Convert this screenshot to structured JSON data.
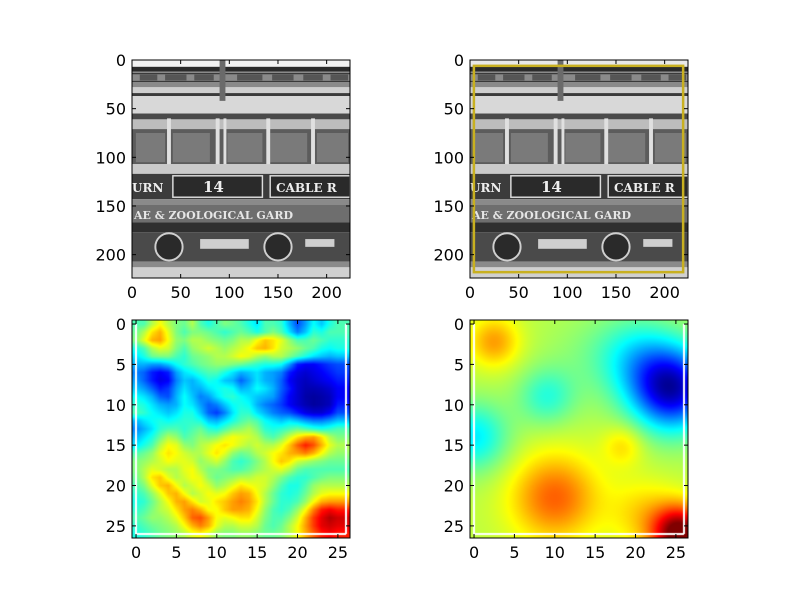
{
  "chart_data": [
    {
      "type": "image",
      "panel": "top-left",
      "content": "grayscale photo of cable car No. 14",
      "image_text": [
        "URN",
        "14",
        "CABLE R",
        "AE & ZOOLOGICAL GARD"
      ],
      "xlim": [
        0,
        224
      ],
      "ylim": [
        224,
        0
      ],
      "xticks": [
        0,
        50,
        100,
        150,
        200
      ],
      "yticks": [
        0,
        50,
        100,
        150,
        200
      ],
      "grid": false
    },
    {
      "type": "image",
      "panel": "top-right",
      "content": "same grayscale photo with bounding box",
      "image_text": [
        "URN",
        "14",
        "CABLE R",
        "AE & ZOOLOGICAL GARD"
      ],
      "xlim": [
        0,
        224
      ],
      "ylim": [
        224,
        0
      ],
      "xticks": [
        0,
        50,
        100,
        150,
        200
      ],
      "yticks": [
        0,
        50,
        100,
        150,
        200
      ],
      "box": {
        "x0": 4,
        "y0": 6,
        "x1": 219,
        "y1": 218,
        "color": "#c8b020"
      },
      "grid": false
    },
    {
      "type": "heatmap",
      "panel": "bottom-left",
      "colormap": "jet",
      "xlim": [
        0,
        26
      ],
      "ylim": [
        26,
        0
      ],
      "xticks": [
        0,
        5,
        10,
        15,
        20,
        25
      ],
      "yticks": [
        0,
        5,
        10,
        15,
        20,
        25
      ],
      "grid": false,
      "values_0_to_1": [
        [
          0.45,
          0.45,
          0.55,
          0.62,
          0.55,
          0.5,
          0.48,
          0.55,
          0.45,
          0.4,
          0.45,
          0.5,
          0.48,
          0.45,
          0.4,
          0.35,
          0.45,
          0.45,
          0.42,
          0.3,
          0.2,
          0.28,
          0.38,
          0.32,
          0.4,
          0.45
        ],
        [
          0.48,
          0.55,
          0.65,
          0.7,
          0.6,
          0.5,
          0.45,
          0.5,
          0.5,
          0.48,
          0.45,
          0.42,
          0.45,
          0.48,
          0.45,
          0.4,
          0.45,
          0.5,
          0.45,
          0.35,
          0.25,
          0.32,
          0.42,
          0.4,
          0.45,
          0.45
        ],
        [
          0.5,
          0.6,
          0.7,
          0.72,
          0.62,
          0.52,
          0.5,
          0.55,
          0.55,
          0.52,
          0.5,
          0.48,
          0.5,
          0.55,
          0.55,
          0.62,
          0.68,
          0.65,
          0.6,
          0.52,
          0.45,
          0.45,
          0.48,
          0.45,
          0.42,
          0.42
        ],
        [
          0.4,
          0.45,
          0.55,
          0.6,
          0.58,
          0.5,
          0.45,
          0.52,
          0.55,
          0.58,
          0.55,
          0.52,
          0.55,
          0.58,
          0.62,
          0.68,
          0.7,
          0.65,
          0.58,
          0.55,
          0.52,
          0.48,
          0.45,
          0.4,
          0.38,
          0.4
        ],
        [
          0.35,
          0.4,
          0.48,
          0.5,
          0.5,
          0.45,
          0.42,
          0.48,
          0.5,
          0.52,
          0.55,
          0.55,
          0.58,
          0.62,
          0.6,
          0.55,
          0.52,
          0.55,
          0.55,
          0.5,
          0.45,
          0.4,
          0.35,
          0.32,
          0.3,
          0.32
        ],
        [
          0.3,
          0.3,
          0.28,
          0.28,
          0.32,
          0.38,
          0.42,
          0.45,
          0.48,
          0.5,
          0.52,
          0.52,
          0.5,
          0.48,
          0.45,
          0.42,
          0.4,
          0.4,
          0.38,
          0.28,
          0.15,
          0.12,
          0.12,
          0.15,
          0.18,
          0.2
        ],
        [
          0.25,
          0.22,
          0.15,
          0.12,
          0.15,
          0.28,
          0.35,
          0.38,
          0.42,
          0.45,
          0.45,
          0.4,
          0.35,
          0.3,
          0.32,
          0.35,
          0.3,
          0.28,
          0.25,
          0.15,
          0.1,
          0.08,
          0.1,
          0.12,
          0.15,
          0.18
        ],
        [
          0.28,
          0.22,
          0.15,
          0.1,
          0.12,
          0.25,
          0.32,
          0.3,
          0.35,
          0.4,
          0.38,
          0.32,
          0.3,
          0.22,
          0.28,
          0.35,
          0.3,
          0.28,
          0.22,
          0.12,
          0.08,
          0.06,
          0.08,
          0.1,
          0.12,
          0.15
        ],
        [
          0.32,
          0.28,
          0.22,
          0.15,
          0.18,
          0.28,
          0.35,
          0.3,
          0.3,
          0.35,
          0.38,
          0.4,
          0.38,
          0.3,
          0.32,
          0.38,
          0.35,
          0.3,
          0.22,
          0.15,
          0.08,
          0.05,
          0.05,
          0.06,
          0.08,
          0.12
        ],
        [
          0.38,
          0.35,
          0.3,
          0.22,
          0.2,
          0.3,
          0.38,
          0.32,
          0.25,
          0.28,
          0.35,
          0.4,
          0.42,
          0.38,
          0.35,
          0.32,
          0.3,
          0.28,
          0.2,
          0.12,
          0.08,
          0.04,
          0.03,
          0.04,
          0.06,
          0.12
        ],
        [
          0.42,
          0.4,
          0.35,
          0.3,
          0.28,
          0.3,
          0.38,
          0.35,
          0.28,
          0.22,
          0.25,
          0.32,
          0.38,
          0.4,
          0.38,
          0.3,
          0.25,
          0.22,
          0.18,
          0.12,
          0.08,
          0.05,
          0.03,
          0.04,
          0.06,
          0.15
        ],
        [
          0.45,
          0.42,
          0.38,
          0.35,
          0.32,
          0.35,
          0.4,
          0.4,
          0.32,
          0.22,
          0.18,
          0.25,
          0.35,
          0.42,
          0.42,
          0.35,
          0.3,
          0.25,
          0.22,
          0.2,
          0.15,
          0.1,
          0.08,
          0.08,
          0.12,
          0.2
        ],
        [
          0.3,
          0.35,
          0.38,
          0.4,
          0.38,
          0.4,
          0.42,
          0.42,
          0.4,
          0.32,
          0.3,
          0.35,
          0.4,
          0.45,
          0.48,
          0.45,
          0.38,
          0.35,
          0.32,
          0.35,
          0.32,
          0.28,
          0.25,
          0.25,
          0.28,
          0.32
        ],
        [
          0.25,
          0.3,
          0.35,
          0.42,
          0.45,
          0.45,
          0.42,
          0.45,
          0.48,
          0.42,
          0.4,
          0.45,
          0.5,
          0.52,
          0.55,
          0.5,
          0.42,
          0.4,
          0.42,
          0.45,
          0.48,
          0.45,
          0.42,
          0.4,
          0.42,
          0.45
        ],
        [
          0.3,
          0.35,
          0.4,
          0.48,
          0.55,
          0.52,
          0.45,
          0.48,
          0.52,
          0.5,
          0.52,
          0.58,
          0.62,
          0.6,
          0.58,
          0.55,
          0.48,
          0.45,
          0.5,
          0.58,
          0.65,
          0.7,
          0.72,
          0.65,
          0.55,
          0.5
        ],
        [
          0.35,
          0.4,
          0.45,
          0.55,
          0.62,
          0.6,
          0.52,
          0.5,
          0.55,
          0.58,
          0.62,
          0.65,
          0.62,
          0.58,
          0.55,
          0.58,
          0.55,
          0.55,
          0.6,
          0.68,
          0.78,
          0.85,
          0.8,
          0.7,
          0.6,
          0.55
        ],
        [
          0.45,
          0.48,
          0.52,
          0.6,
          0.65,
          0.62,
          0.58,
          0.55,
          0.55,
          0.6,
          0.65,
          0.6,
          0.52,
          0.48,
          0.5,
          0.55,
          0.58,
          0.62,
          0.65,
          0.7,
          0.72,
          0.75,
          0.7,
          0.62,
          0.55,
          0.52
        ],
        [
          0.5,
          0.52,
          0.55,
          0.58,
          0.62,
          0.6,
          0.6,
          0.58,
          0.52,
          0.55,
          0.58,
          0.52,
          0.45,
          0.42,
          0.45,
          0.5,
          0.55,
          0.62,
          0.68,
          0.65,
          0.58,
          0.55,
          0.52,
          0.5,
          0.48,
          0.48
        ],
        [
          0.5,
          0.55,
          0.6,
          0.58,
          0.55,
          0.55,
          0.6,
          0.62,
          0.55,
          0.5,
          0.5,
          0.48,
          0.45,
          0.45,
          0.48,
          0.52,
          0.55,
          0.58,
          0.6,
          0.55,
          0.48,
          0.45,
          0.45,
          0.45,
          0.45,
          0.45
        ],
        [
          0.48,
          0.55,
          0.65,
          0.68,
          0.6,
          0.55,
          0.58,
          0.62,
          0.6,
          0.52,
          0.48,
          0.5,
          0.52,
          0.55,
          0.55,
          0.58,
          0.58,
          0.55,
          0.5,
          0.45,
          0.42,
          0.42,
          0.45,
          0.48,
          0.5,
          0.5
        ],
        [
          0.45,
          0.5,
          0.6,
          0.68,
          0.7,
          0.62,
          0.55,
          0.58,
          0.62,
          0.58,
          0.52,
          0.55,
          0.6,
          0.65,
          0.62,
          0.6,
          0.58,
          0.52,
          0.45,
          0.4,
          0.4,
          0.45,
          0.52,
          0.55,
          0.55,
          0.55
        ],
        [
          0.42,
          0.45,
          0.52,
          0.6,
          0.68,
          0.7,
          0.62,
          0.55,
          0.58,
          0.62,
          0.6,
          0.62,
          0.68,
          0.72,
          0.7,
          0.62,
          0.55,
          0.48,
          0.42,
          0.4,
          0.42,
          0.48,
          0.55,
          0.6,
          0.62,
          0.62
        ],
        [
          0.4,
          0.42,
          0.48,
          0.55,
          0.62,
          0.7,
          0.72,
          0.65,
          0.58,
          0.6,
          0.65,
          0.68,
          0.72,
          0.75,
          0.72,
          0.65,
          0.55,
          0.48,
          0.42,
          0.42,
          0.45,
          0.52,
          0.62,
          0.7,
          0.72,
          0.72
        ],
        [
          0.42,
          0.45,
          0.5,
          0.55,
          0.58,
          0.65,
          0.72,
          0.75,
          0.7,
          0.62,
          0.62,
          0.68,
          0.72,
          0.72,
          0.7,
          0.62,
          0.52,
          0.45,
          0.42,
          0.45,
          0.52,
          0.62,
          0.75,
          0.85,
          0.88,
          0.85
        ],
        [
          0.45,
          0.48,
          0.52,
          0.52,
          0.55,
          0.6,
          0.68,
          0.78,
          0.8,
          0.72,
          0.62,
          0.6,
          0.62,
          0.65,
          0.65,
          0.58,
          0.5,
          0.45,
          0.45,
          0.5,
          0.58,
          0.7,
          0.82,
          0.9,
          0.95,
          0.92
        ],
        [
          0.42,
          0.45,
          0.48,
          0.5,
          0.52,
          0.55,
          0.62,
          0.7,
          0.75,
          0.7,
          0.6,
          0.55,
          0.55,
          0.58,
          0.58,
          0.55,
          0.48,
          0.45,
          0.48,
          0.55,
          0.62,
          0.72,
          0.82,
          0.9,
          0.92,
          0.9
        ],
        [
          0.4,
          0.42,
          0.45,
          0.48,
          0.5,
          0.52,
          0.55,
          0.6,
          0.62,
          0.58,
          0.52,
          0.5,
          0.5,
          0.52,
          0.52,
          0.5,
          0.48,
          0.48,
          0.5,
          0.55,
          0.62,
          0.7,
          0.78,
          0.85,
          0.88,
          0.85
        ]
      ]
    },
    {
      "type": "heatmap",
      "panel": "bottom-right",
      "colormap": "jet",
      "xlim": [
        0,
        26
      ],
      "ylim": [
        26,
        0
      ],
      "xticks": [
        0,
        5,
        10,
        15,
        20,
        25
      ],
      "yticks": [
        0,
        5,
        10,
        15,
        20,
        25
      ],
      "grid": false,
      "smooth_bumps": [
        {
          "x": 2.5,
          "y": 2.2,
          "amp": 0.16,
          "sigma": 2.2
        },
        {
          "x": 0.0,
          "y": 14.0,
          "amp": -0.2,
          "sigma": 3.0
        },
        {
          "x": 9.0,
          "y": 9.0,
          "amp": -0.14,
          "sigma": 2.5
        },
        {
          "x": 24.5,
          "y": 8.0,
          "amp": -0.5,
          "sigma": 3.6
        },
        {
          "x": 20.0,
          "y": 4.0,
          "amp": -0.15,
          "sigma": 3.5
        },
        {
          "x": 10.0,
          "y": 21.5,
          "amp": 0.22,
          "sigma": 3.8
        },
        {
          "x": 18.5,
          "y": 15.0,
          "amp": 0.1,
          "sigma": 1.8
        },
        {
          "x": 25.5,
          "y": 26.0,
          "amp": 0.48,
          "sigma": 2.4
        },
        {
          "x": 21.0,
          "y": 23.5,
          "amp": 0.1,
          "sigma": 3.0
        },
        {
          "x": 14.0,
          "y": 4.0,
          "amp": -0.04,
          "sigma": 4.0
        }
      ],
      "base_level": 0.56
    }
  ]
}
